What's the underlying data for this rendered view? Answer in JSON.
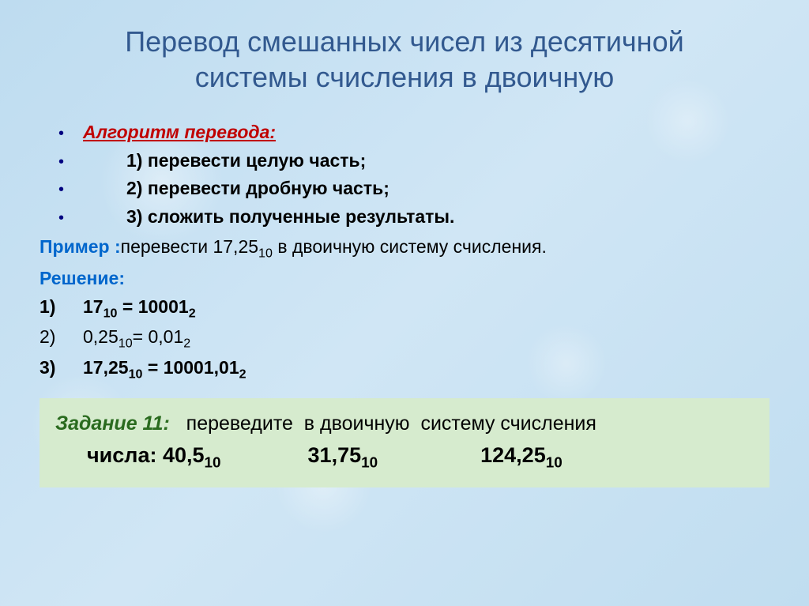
{
  "title_color": "#32598f",
  "title_line1": "Перевод смешанных чисел из десятичной",
  "title_line2": "системы счисления в двоичную",
  "algo_header": "Алгоритм перевода:",
  "algo_steps": [
    "1) перевести целую часть;",
    "2) перевести дробную часть;",
    "3) сложить полученные результаты."
  ],
  "example_label": "Пример :",
  "example_text_a": "перевести 17,25",
  "example_sub": "10",
  "example_text_b": " в двоичную систему счисления.",
  "solution_label": "Решение:",
  "solutions": [
    {
      "n": "1)",
      "bold": true,
      "lhs": "17",
      "lsub": "10",
      "eq": " = ",
      "rhs": "10001",
      "rsub": "2"
    },
    {
      "n": "2)",
      "bold": false,
      "lhs": "0,25",
      "lsub": "10",
      "eq": "= ",
      "rhs": "0,01",
      "rsub": "2"
    },
    {
      "n": "3)",
      "bold": true,
      "lhs": "17,25",
      "lsub": "10",
      "eq": " = ",
      "rhs": "10001,01",
      "rsub": "2"
    }
  ],
  "task_label": "Задание 11:",
  "task_text_a": "   переведите  в двоичную  систему счисления",
  "task_text_b": "числа: ",
  "task_numbers": [
    {
      "val": "40,5",
      "sub": "10"
    },
    {
      "val": "31,75",
      "sub": "10"
    },
    {
      "val": "124,25",
      "sub": "10"
    }
  ],
  "colors": {
    "algo_header": "#c00000",
    "example_label": "#0066cc",
    "solution_label": "#0066cc",
    "task_label": "#2a6b1f",
    "task_bg": "#d6ebce",
    "bullet": "#000080",
    "body_bg": "#c8e0f0"
  },
  "fonts": {
    "title_size": 36,
    "body_size": 23,
    "task_size": 25,
    "task_num_size": 27
  }
}
